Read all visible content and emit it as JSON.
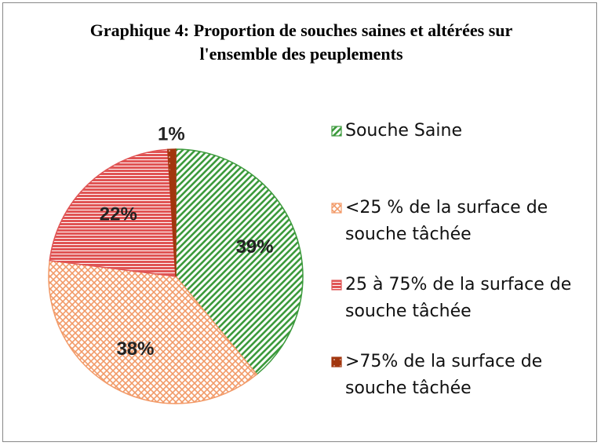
{
  "chart_data": {
    "type": "pie",
    "title": "Graphique 4: Proportion de souches saines et altérées sur l'ensemble des peuplements",
    "categories": [
      "Souche Saine",
      "<25 % de la surface de souche tâchée",
      "25 à 75% de la surface de souche tâchée",
      ">75% de la surface de souche tâchée"
    ],
    "values": [
      39,
      38,
      22,
      1
    ],
    "value_labels": [
      "39%",
      "38%",
      "22%",
      "1%"
    ],
    "colors": [
      "#3c9a3c",
      "#f29a68",
      "#e05454",
      "#a2360e"
    ],
    "legend": "right"
  }
}
